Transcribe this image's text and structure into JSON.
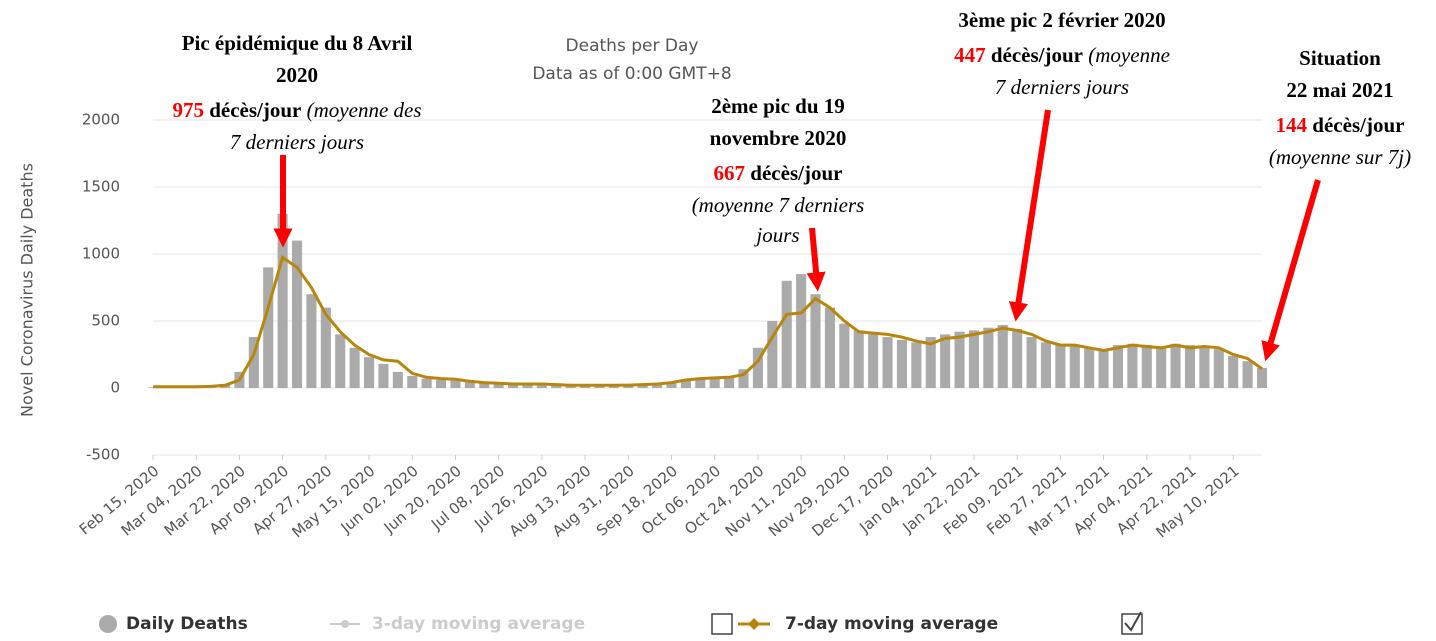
{
  "chart_data": {
    "type": "bar",
    "title": "Deaths per Day",
    "subtitle": "Data as of 0:00 GMT+8",
    "y_label": "Novel Coronavirus Daily Deaths",
    "x": [
      "Feb 15, 2020",
      "Feb 21, 2020",
      "Feb 27, 2020",
      "Mar 04, 2020",
      "Mar 10, 2020",
      "Mar 16, 2020",
      "Mar 22, 2020",
      "Mar 28, 2020",
      "Apr 03, 2020",
      "Apr 09, 2020",
      "Apr 15, 2020",
      "Apr 21, 2020",
      "Apr 27, 2020",
      "May 03, 2020",
      "May 09, 2020",
      "May 15, 2020",
      "May 21, 2020",
      "May 27, 2020",
      "Jun 02, 2020",
      "Jun 08, 2020",
      "Jun 14, 2020",
      "Jun 20, 2020",
      "Jun 26, 2020",
      "Jul 02, 2020",
      "Jul 08, 2020",
      "Jul 14, 2020",
      "Jul 20, 2020",
      "Jul 26, 2020",
      "Aug 01, 2020",
      "Aug 07, 2020",
      "Aug 13, 2020",
      "Aug 19, 2020",
      "Aug 25, 2020",
      "Aug 31, 2020",
      "Sep 06, 2020",
      "Sep 12, 2020",
      "Sep 18, 2020",
      "Sep 24, 2020",
      "Sep 30, 2020",
      "Oct 06, 2020",
      "Oct 12, 2020",
      "Oct 18, 2020",
      "Oct 24, 2020",
      "Oct 30, 2020",
      "Nov 05, 2020",
      "Nov 11, 2020",
      "Nov 17, 2020",
      "Nov 23, 2020",
      "Nov 29, 2020",
      "Dec 05, 2020",
      "Dec 11, 2020",
      "Dec 17, 2020",
      "Dec 23, 2020",
      "Dec 29, 2020",
      "Jan 04, 2021",
      "Jan 10, 2021",
      "Jan 16, 2021",
      "Jan 22, 2021",
      "Jan 28, 2021",
      "Feb 03, 2021",
      "Feb 09, 2021",
      "Feb 15, 2021",
      "Feb 21, 2021",
      "Feb 27, 2021",
      "Mar 05, 2021",
      "Mar 11, 2021",
      "Mar 17, 2021",
      "Mar 23, 2021",
      "Mar 29, 2021",
      "Apr 04, 2021",
      "Apr 10, 2021",
      "Apr 16, 2021",
      "Apr 22, 2021",
      "Apr 28, 2021",
      "May 04, 2021",
      "May 10, 2021",
      "May 16, 2021",
      "May 22, 2021"
    ],
    "xticks": [
      "Feb 15, 2020",
      "Mar 04, 2020",
      "Mar 22, 2020",
      "Apr 09, 2020",
      "Apr 27, 2020",
      "May 15, 2020",
      "Jun 02, 2020",
      "Jun 20, 2020",
      "Jul 08, 2020",
      "Jul 26, 2020",
      "Aug 13, 2020",
      "Aug 31, 2020",
      "Sep 18, 2020",
      "Oct 06, 2020",
      "Oct 24, 2020",
      "Nov 11, 2020",
      "Nov 29, 2020",
      "Dec 17, 2020",
      "Jan 04, 2021",
      "Jan 22, 2021",
      "Feb 09, 2021",
      "Feb 27, 2021",
      "Mar 17, 2021",
      "Apr 04, 2021",
      "Apr 22, 2021",
      "May 10, 2021"
    ],
    "ylim": [
      -500,
      2000
    ],
    "yticks": [
      -500,
      0,
      500,
      1000,
      1500,
      2000
    ],
    "grid": true,
    "series": [
      {
        "name": "Daily Deaths",
        "color": "#aaaaaa",
        "kind": "bar",
        "values": [
          5,
          5,
          8,
          10,
          15,
          30,
          120,
          380,
          900,
          1300,
          1100,
          700,
          600,
          400,
          300,
          230,
          180,
          120,
          90,
          70,
          60,
          55,
          45,
          40,
          35,
          30,
          30,
          28,
          25,
          20,
          20,
          22,
          20,
          25,
          28,
          35,
          45,
          65,
          75,
          80,
          90,
          140,
          300,
          500,
          800,
          850,
          700,
          600,
          480,
          430,
          400,
          380,
          360,
          340,
          380,
          400,
          420,
          430,
          450,
          470,
          440,
          380,
          340,
          330,
          320,
          300,
          290,
          320,
          330,
          320,
          310,
          330,
          320,
          300,
          290,
          240,
          200,
          150
        ]
      },
      {
        "name": "7-day moving average",
        "color": "#b8860b",
        "kind": "line",
        "values": [
          10,
          10,
          10,
          10,
          12,
          20,
          60,
          250,
          600,
          975,
          900,
          750,
          550,
          420,
          320,
          250,
          210,
          200,
          110,
          80,
          70,
          65,
          50,
          40,
          35,
          30,
          30,
          30,
          25,
          20,
          20,
          20,
          20,
          22,
          25,
          30,
          40,
          60,
          70,
          75,
          80,
          100,
          200,
          380,
          550,
          560,
          667,
          600,
          500,
          420,
          410,
          400,
          380,
          350,
          330,
          370,
          380,
          400,
          420,
          447,
          430,
          400,
          350,
          320,
          320,
          300,
          280,
          300,
          320,
          310,
          300,
          320,
          300,
          310,
          300,
          250,
          220,
          144
        ]
      }
    ],
    "hidden_series": [
      {
        "name": "3-day moving average",
        "color": "#cccccc"
      }
    ],
    "annotations": [
      {
        "title": [
          "Pic épidémique du 8 Avril",
          "2020"
        ],
        "value": 975,
        "unit": "décès/jour",
        "note": [
          "(moyenne des",
          "7 derniers jours"
        ]
      },
      {
        "title": [
          "2ème pic du 19",
          "novembre 2020"
        ],
        "value": 667,
        "unit": "décès/jour",
        "note": [
          "(moyenne 7 derniers",
          "jours"
        ]
      },
      {
        "title": [
          "3ème pic 2 février 2020"
        ],
        "value": 447,
        "unit": "décès/jour",
        "note": [
          "(moyenne",
          "7 derniers jours"
        ]
      },
      {
        "title": [
          "Situation",
          "22 mai 2021"
        ],
        "value": 144,
        "unit": "décès/jour",
        "note": [
          "(moyenne sur 7j)"
        ]
      }
    ]
  }
}
